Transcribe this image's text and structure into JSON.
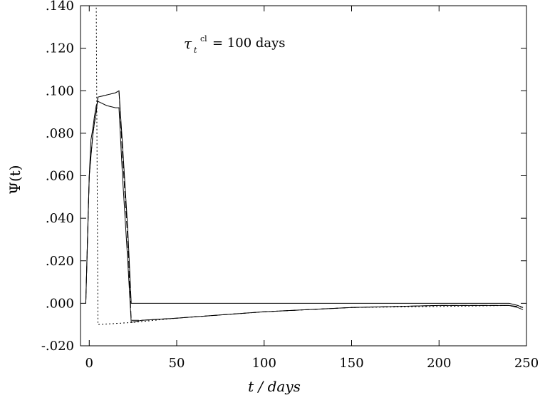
{
  "chart_data": {
    "type": "line",
    "title": "",
    "xlabel": "t  / days",
    "ylabel": "Ψ(t)",
    "xlim": [
      -5,
      250
    ],
    "ylim": [
      -0.02,
      0.14
    ],
    "x_ticks": [
      0,
      50,
      100,
      150,
      200,
      250
    ],
    "x_tick_labels": [
      "0",
      "50",
      "100",
      "150",
      "200",
      "250"
    ],
    "y_ticks": [
      -0.02,
      0,
      0.02,
      0.04,
      0.06,
      0.08,
      0.1,
      0.12,
      0.14
    ],
    "y_tick_labels": [
      "-.020",
      ".000",
      ".020",
      ".040",
      ".060",
      ".080",
      ".100",
      ".120",
      ".140"
    ],
    "grid": false,
    "annotation": {
      "tau": "τ",
      "tau_sub": "t",
      "tau_sup": "cl",
      "rest": "= 100 days"
    },
    "series": [
      {
        "style": "solid",
        "x": [
          -2,
          -1,
          0,
          1,
          2,
          3,
          4,
          5,
          10,
          15,
          17,
          19,
          22,
          24,
          30,
          50,
          100,
          150,
          200,
          240,
          245,
          248
        ],
        "y": [
          0.0,
          0.03,
          0.06,
          0.077,
          0.082,
          0.088,
          0.093,
          0.095,
          0.093,
          0.092,
          0.092,
          0.06,
          0.02,
          -0.009,
          -0.008,
          -0.007,
          -0.004,
          -0.002,
          -0.001,
          -0.001,
          -0.002,
          -0.003
        ]
      },
      {
        "style": "solid",
        "x": [
          -2,
          0,
          2,
          3,
          4,
          5,
          10,
          15,
          17,
          19,
          22,
          24,
          30,
          100,
          200,
          240,
          245,
          248
        ],
        "y": [
          0.0,
          0.06,
          0.079,
          0.085,
          0.09,
          0.097,
          0.098,
          0.099,
          0.1,
          0.075,
          0.035,
          0.0,
          0.0,
          0.0,
          0.0,
          0.0,
          -0.001,
          -0.002
        ]
      },
      {
        "style": "dashed",
        "x": [
          -2,
          0,
          2,
          3,
          4,
          5,
          10,
          15,
          17,
          19,
          22,
          24,
          30,
          50,
          100,
          150,
          200,
          240,
          245,
          248
        ],
        "y": [
          0.0,
          0.06,
          0.079,
          0.085,
          0.09,
          0.097,
          0.098,
          0.099,
          0.1,
          0.07,
          0.03,
          -0.008,
          -0.008,
          -0.007,
          -0.004,
          -0.002,
          -0.001,
          -0.001,
          -0.0015,
          -0.002
        ]
      },
      {
        "style": "dotted",
        "x": [
          -3,
          0,
          0.5,
          2,
          4,
          5,
          25,
          50,
          100,
          150,
          200,
          240,
          245
        ],
        "y": [
          0.14,
          0.14,
          0.14,
          0.14,
          0.14,
          -0.01,
          -0.009,
          -0.007,
          -0.004,
          -0.002,
          -0.0015,
          -0.001,
          -0.002
        ]
      }
    ]
  }
}
